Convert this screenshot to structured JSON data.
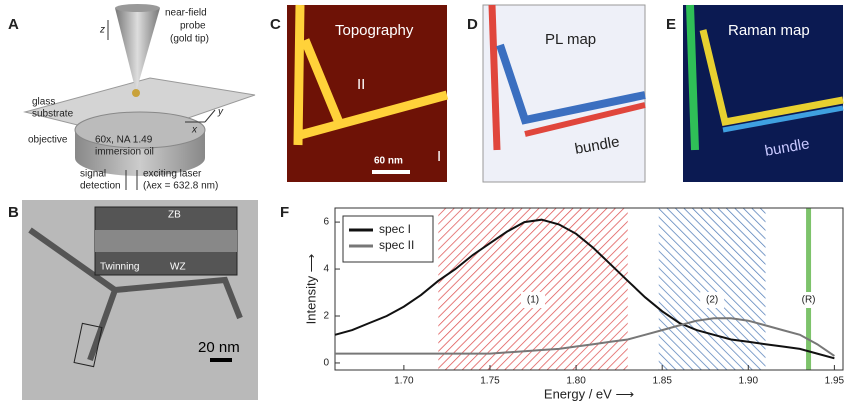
{
  "panels": {
    "a": {
      "label": "A",
      "axis_z": "z",
      "probe": [
        "near-field",
        "probe",
        "(gold tip)"
      ],
      "substrate": [
        "glass",
        "substrate"
      ],
      "objective": "objective",
      "objective_spec": [
        "60x, NA 1.49",
        "immersion oil"
      ],
      "axis_x": "x",
      "axis_y": "y",
      "signal": [
        "signal",
        "detection"
      ],
      "laser": [
        "exciting laser",
        "(λex = 632.8 nm)"
      ]
    },
    "b": {
      "label": "B",
      "inset": [
        "ZB",
        "Twinning",
        "WZ"
      ],
      "scale_bar": "20 nm"
    },
    "c": {
      "label": "C",
      "title": "Topography",
      "markers": [
        "II",
        "I"
      ],
      "scale_bar": "60 nm"
    },
    "d": {
      "label": "D",
      "title": "PL map",
      "annotation": "bundle"
    },
    "e": {
      "label": "E",
      "title": "Raman map",
      "annotation": "bundle"
    },
    "f": {
      "label": "F"
    }
  },
  "chart_data": {
    "type": "line",
    "x_label": "Energy / eV ⟶",
    "y_label": "Intensity ⟶",
    "x": [
      1.66,
      1.67,
      1.68,
      1.69,
      1.7,
      1.71,
      1.72,
      1.73,
      1.74,
      1.75,
      1.76,
      1.77,
      1.78,
      1.79,
      1.8,
      1.81,
      1.82,
      1.83,
      1.84,
      1.85,
      1.86,
      1.87,
      1.88,
      1.89,
      1.9,
      1.91,
      1.92,
      1.93,
      1.94,
      1.95
    ],
    "series": [
      {
        "name": "spec I",
        "color": "#111111",
        "values": [
          1.2,
          1.4,
          1.7,
          2.0,
          2.4,
          2.9,
          3.5,
          4.0,
          4.6,
          5.1,
          5.6,
          6.0,
          6.1,
          5.9,
          5.5,
          4.9,
          4.2,
          3.5,
          2.8,
          2.2,
          1.7,
          1.4,
          1.2,
          1.0,
          0.9,
          0.8,
          0.7,
          0.6,
          0.4,
          0.2
        ]
      },
      {
        "name": "spec II",
        "color": "#777777",
        "values": [
          0.4,
          0.4,
          0.4,
          0.4,
          0.4,
          0.4,
          0.4,
          0.4,
          0.4,
          0.4,
          0.45,
          0.5,
          0.55,
          0.6,
          0.7,
          0.8,
          0.9,
          1.0,
          1.2,
          1.4,
          1.6,
          1.8,
          1.9,
          1.9,
          1.8,
          1.6,
          1.4,
          1.2,
          0.8,
          0.3
        ]
      }
    ],
    "regions": [
      {
        "label": "(1)",
        "range": [
          1.72,
          1.83
        ],
        "color": "#d62828"
      },
      {
        "label": "(2)",
        "range": [
          1.848,
          1.91
        ],
        "color": "#2a5fa8"
      }
    ],
    "line_marker": {
      "label": "(R)",
      "x": 1.935,
      "color": "#7dc36b"
    },
    "xlim": [
      1.66,
      1.955
    ],
    "ylim": [
      -0.3,
      6.6
    ],
    "xticks": [
      {
        "value": 1.7,
        "label": "1.70"
      },
      1.75,
      {
        "value": 1.8,
        "label": "1.80"
      },
      1.85,
      {
        "value": 1.9,
        "label": "1.90"
      },
      1.95
    ],
    "yticks": [
      0,
      2,
      4,
      6
    ],
    "legend": "upper left"
  }
}
